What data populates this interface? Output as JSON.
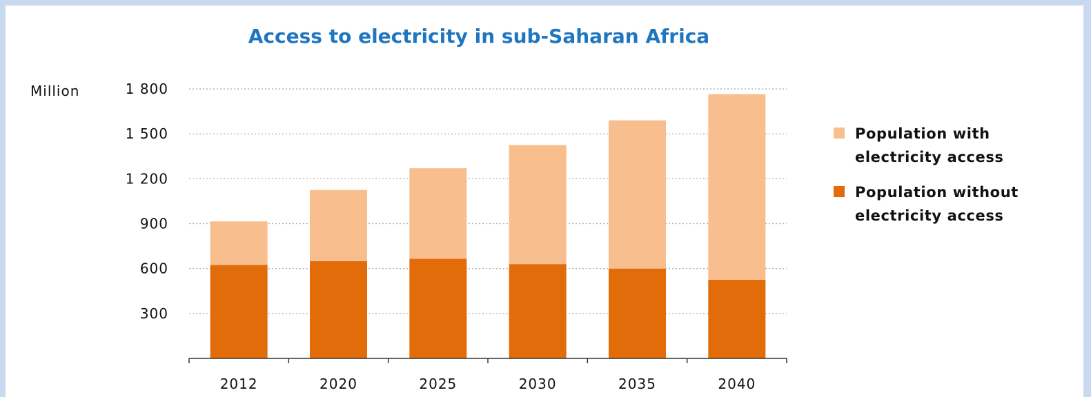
{
  "chart_data": {
    "type": "bar",
    "stacked": true,
    "title": "Access to electricity in sub-Saharan Africa",
    "ylabel": "Million",
    "categories": [
      "2012",
      "2020",
      "2025",
      "2030",
      "2035",
      "2040"
    ],
    "ylim": [
      0,
      1800
    ],
    "yticks": [
      "300",
      "600",
      "900",
      "1 200",
      "1 500",
      "1 800"
    ],
    "ytick_values": [
      300,
      600,
      900,
      1200,
      1500,
      1800
    ],
    "grid": true,
    "legend_position": "right",
    "series": [
      {
        "name": "Population without electricity access",
        "values": [
          625,
          650,
          665,
          630,
          600,
          525
        ],
        "color": "#e36c0a"
      },
      {
        "name": "Population with electricity access",
        "values": [
          290,
          475,
          605,
          795,
          990,
          1240
        ],
        "color": "#f8be8e"
      }
    ],
    "legend": [
      {
        "line1": "Population with",
        "line2": "electricity access"
      },
      {
        "line1": "Population without",
        "line2": "electricity access"
      }
    ]
  }
}
